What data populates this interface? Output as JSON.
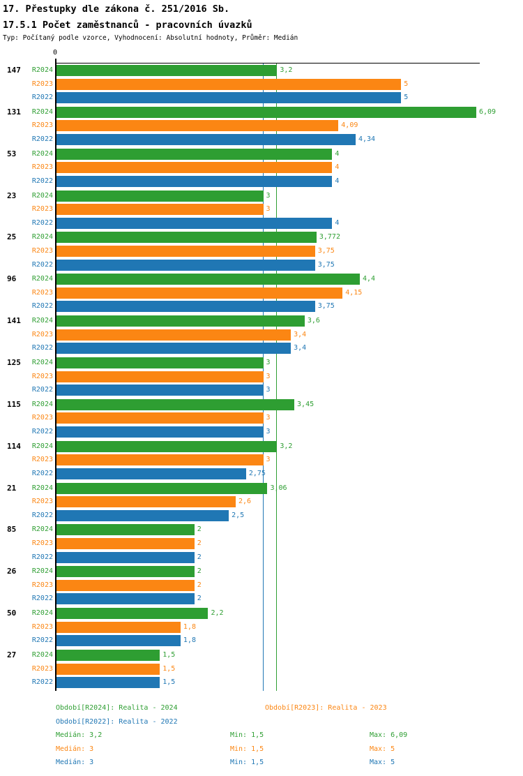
{
  "title": "17. Přestupky dle zákona č. 251/2016 Sb.",
  "subtitle": "17.5.1 Počet zaměstnanců - pracovních úvazků",
  "meta": "Typ: Počítaný podle vzorce, Vyhodnocení: Absolutní hodnoty, Průměr: Medián",
  "axis": {
    "zero_label": "0"
  },
  "colors": {
    "green": "#2e9e32",
    "orange": "#fb8613",
    "blue": "#2077b4",
    "axis": "#000000"
  },
  "chart_data": {
    "type": "bar",
    "orientation": "horizontal",
    "xlim": [
      0,
      6.14
    ],
    "grid": false,
    "series_names": [
      "R2024",
      "R2023",
      "R2022"
    ],
    "series_colors": [
      "green",
      "orange",
      "blue"
    ],
    "median_lines": [
      {
        "series": "R2024",
        "value": 3.2,
        "color": "green"
      },
      {
        "series": "R2023",
        "value": 3,
        "color": "orange"
      },
      {
        "series": "R2022",
        "value": 3,
        "color": "blue"
      }
    ],
    "groups": [
      {
        "category": "147",
        "values": [
          3.2,
          5,
          5
        ],
        "labels": [
          "3,2",
          "5",
          "5"
        ]
      },
      {
        "category": "131",
        "values": [
          6.09,
          4.09,
          4.34
        ],
        "labels": [
          "6,09",
          "4,09",
          "4,34"
        ]
      },
      {
        "category": "53",
        "values": [
          4,
          4,
          4
        ],
        "labels": [
          "4",
          "4",
          "4"
        ]
      },
      {
        "category": "23",
        "values": [
          3,
          3,
          4
        ],
        "labels": [
          "3",
          "3",
          "4"
        ]
      },
      {
        "category": "25",
        "values": [
          3.772,
          3.75,
          3.75
        ],
        "labels": [
          "3,772",
          "3,75",
          "3,75"
        ]
      },
      {
        "category": "96",
        "values": [
          4.4,
          4.15,
          3.75
        ],
        "labels": [
          "4,4",
          "4,15",
          "3,75"
        ]
      },
      {
        "category": "141",
        "values": [
          3.6,
          3.4,
          3.4
        ],
        "labels": [
          "3,6",
          "3,4",
          "3,4"
        ]
      },
      {
        "category": "125",
        "values": [
          3,
          3,
          3
        ],
        "labels": [
          "3",
          "3",
          "3"
        ]
      },
      {
        "category": "115",
        "values": [
          3.45,
          3,
          3
        ],
        "labels": [
          "3,45",
          "3",
          "3"
        ]
      },
      {
        "category": "114",
        "values": [
          3.2,
          3,
          2.75
        ],
        "labels": [
          "3,2",
          "3",
          "2,75"
        ]
      },
      {
        "category": "21",
        "values": [
          3.06,
          2.6,
          2.5
        ],
        "labels": [
          "3,06",
          "2,6",
          "2,5"
        ]
      },
      {
        "category": "85",
        "values": [
          2,
          2,
          2
        ],
        "labels": [
          "2",
          "2",
          "2"
        ]
      },
      {
        "category": "26",
        "values": [
          2,
          2,
          2
        ],
        "labels": [
          "2",
          "2",
          "2"
        ]
      },
      {
        "category": "50",
        "values": [
          2.2,
          1.8,
          1.8
        ],
        "labels": [
          "2,2",
          "1,8",
          "1,8"
        ]
      },
      {
        "category": "27",
        "values": [
          1.5,
          1.5,
          1.5
        ],
        "labels": [
          "1,5",
          "1,5",
          "1,5"
        ]
      }
    ]
  },
  "legend": {
    "periods": [
      {
        "label": "Období[R2024]: Realita - 2024",
        "color": "green"
      },
      {
        "label": "Období[R2023]: Realita - 2023",
        "color": "orange"
      },
      {
        "label": "Období[R2022]: Realita - 2022",
        "color": "blue"
      }
    ],
    "stats": [
      {
        "median": "Medián: 3,2",
        "min": "Min: 1,5",
        "max": "Max: 6,09",
        "color": "green"
      },
      {
        "median": "Medián: 3",
        "min": "Min: 1,5",
        "max": "Max: 5",
        "color": "orange"
      },
      {
        "median": "Medián: 3",
        "min": "Min: 1,5",
        "max": "Max: 5",
        "color": "blue"
      }
    ]
  }
}
